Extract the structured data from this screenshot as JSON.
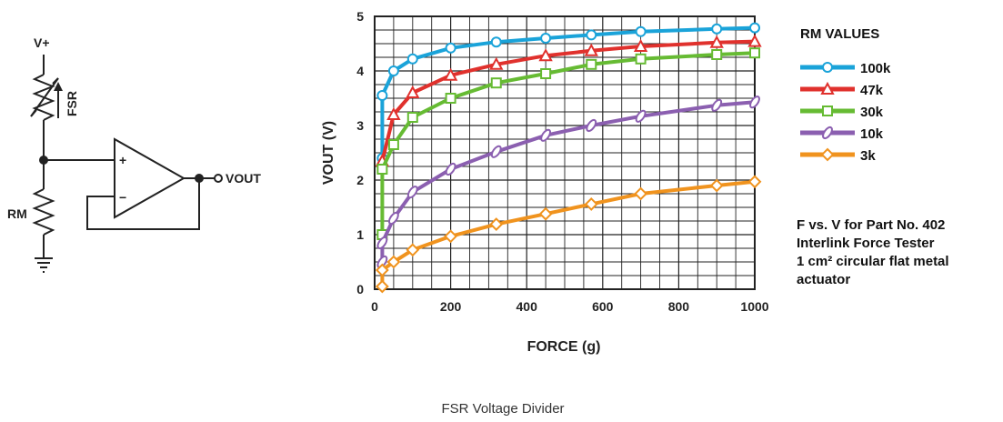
{
  "circuit": {
    "supply_label": "V+",
    "fsr_label": "FSR",
    "rm_label": "RM",
    "plus_label": "+",
    "minus_label": "−",
    "output_label": "VOUT"
  },
  "legend": {
    "title": "RM VALUES"
  },
  "note": {
    "lines": [
      "F vs. V for Part No. 402",
      "Interlink Force Tester",
      "1 cm² circular flat metal",
      "actuator"
    ]
  },
  "caption": "FSR Voltage Divider",
  "chart_data": {
    "type": "line",
    "title": "",
    "xlabel": "FORCE (g)",
    "ylabel": "VOUT (V)",
    "xlim": [
      0,
      1000
    ],
    "ylim": [
      0,
      5
    ],
    "x_ticks": [
      0,
      200,
      400,
      600,
      800,
      1000
    ],
    "y_ticks": [
      0,
      1,
      2,
      3,
      4,
      5
    ],
    "grid": true,
    "legend_position": "right",
    "series": [
      {
        "name": "100k",
        "color": "#1aa3d9",
        "marker": "circle",
        "x": [
          20,
          20,
          50,
          100,
          200,
          320,
          450,
          570,
          700,
          900,
          1000
        ],
        "y": [
          2.4,
          3.55,
          4.0,
          4.22,
          4.42,
          4.53,
          4.6,
          4.66,
          4.72,
          4.77,
          4.79
        ]
      },
      {
        "name": "47k",
        "color": "#e0312d",
        "marker": "triangle",
        "x": [
          20,
          50,
          100,
          200,
          320,
          450,
          570,
          700,
          900,
          1000
        ],
        "y": [
          2.35,
          3.2,
          3.6,
          3.92,
          4.12,
          4.28,
          4.37,
          4.45,
          4.52,
          4.54
        ]
      },
      {
        "name": "30k",
        "color": "#66bb33",
        "marker": "square",
        "x": [
          20,
          20,
          50,
          100,
          200,
          320,
          450,
          570,
          700,
          900,
          1000
        ],
        "y": [
          1.0,
          2.2,
          2.65,
          3.15,
          3.5,
          3.78,
          3.95,
          4.12,
          4.22,
          4.3,
          4.33
        ]
      },
      {
        "name": "10k",
        "color": "#8b5fb0",
        "marker": "ellipse",
        "x": [
          20,
          20,
          50,
          100,
          200,
          320,
          450,
          570,
          700,
          900,
          1000
        ],
        "y": [
          0.5,
          0.85,
          1.3,
          1.78,
          2.2,
          2.52,
          2.82,
          3.0,
          3.17,
          3.37,
          3.43
        ]
      },
      {
        "name": "3k",
        "color": "#f0931e",
        "marker": "diamond",
        "x": [
          20,
          20,
          50,
          100,
          200,
          320,
          450,
          570,
          700,
          900,
          1000
        ],
        "y": [
          0.05,
          0.35,
          0.5,
          0.72,
          0.97,
          1.19,
          1.38,
          1.56,
          1.75,
          1.9,
          1.97
        ]
      }
    ]
  }
}
